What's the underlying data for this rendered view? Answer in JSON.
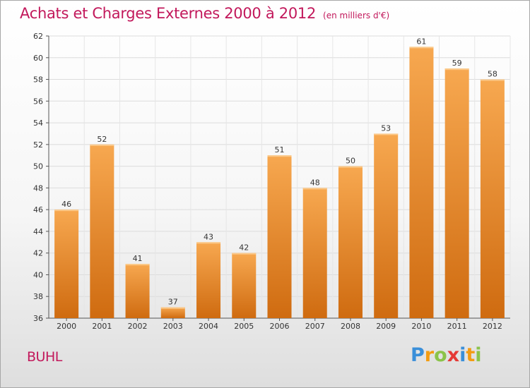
{
  "header": {
    "title": "Achats et Charges Externes 2000 à 2012",
    "subtitle": "(en milliers d'€)"
  },
  "region": "BUHL",
  "brand": {
    "letters": [
      {
        "ch": "P",
        "color": "#3a8fd9"
      },
      {
        "ch": "r",
        "color": "#f39c12"
      },
      {
        "ch": "o",
        "color": "#8bc34a"
      },
      {
        "ch": "x",
        "color": "#e53935"
      },
      {
        "ch": "i",
        "color": "#3a8fd9"
      },
      {
        "ch": "t",
        "color": "#f39c12"
      },
      {
        "ch": "i",
        "color": "#8bc34a"
      }
    ]
  },
  "chart_data": {
    "type": "bar",
    "categories": [
      "2000",
      "2001",
      "2002",
      "2003",
      "2004",
      "2005",
      "2006",
      "2007",
      "2008",
      "2009",
      "2010",
      "2011",
      "2012"
    ],
    "values": [
      46,
      52,
      41,
      37,
      43,
      42,
      51,
      48,
      50,
      53,
      61,
      59,
      58
    ],
    "title": "Achats et Charges Externes 2000 à 2012",
    "subtitle": "(en milliers d'€)",
    "xlabel": "",
    "ylabel": "",
    "ylim": [
      36,
      62
    ],
    "yticks": [
      36,
      38,
      40,
      42,
      44,
      46,
      48,
      50,
      52,
      54,
      56,
      58,
      60,
      62
    ],
    "grid": true,
    "bar_color_top": "#f7a850",
    "bar_color_bottom": "#cf6b10"
  }
}
